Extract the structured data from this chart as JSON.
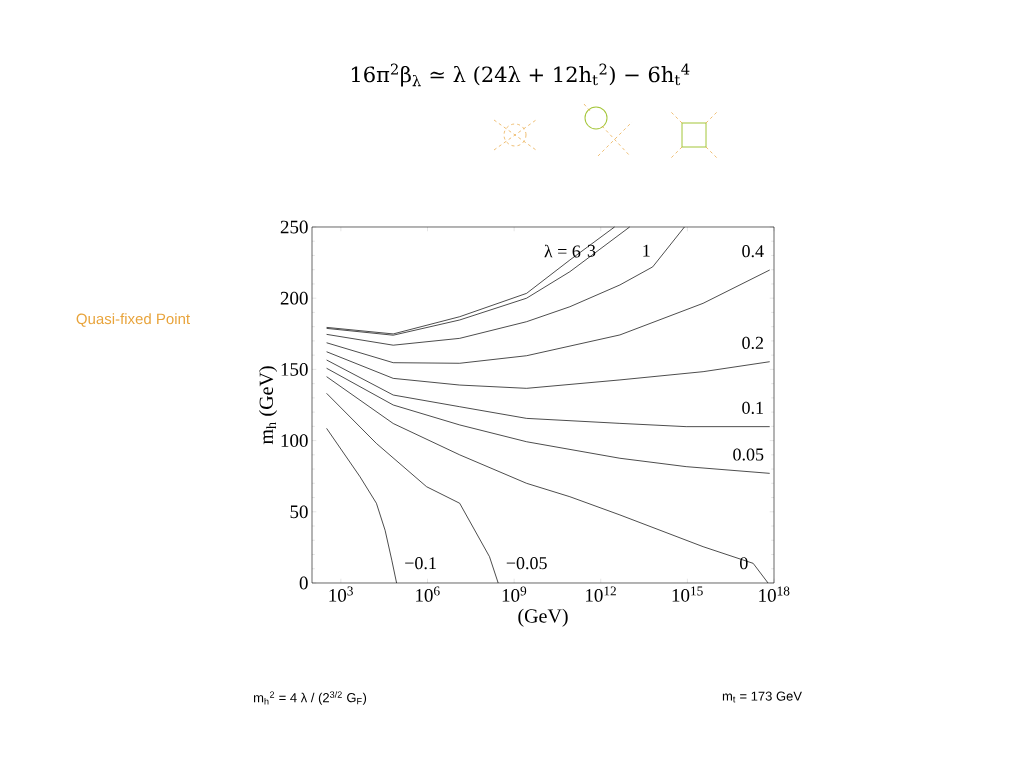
{
  "chart_data": {
    "type": "line",
    "title": "16π$^{2}$β$_{λ}$ ≃ λ (24λ + 12h$_{t}$$^{2}$) − 6h$_{t}$$^{4}$",
    "xlabel": "(GeV)",
    "ylabel": "m$_{h}$  (GeV)",
    "annotations": [
      "Quasi-fixed Point",
      "m$_{h}$$^{2}$ = 4 λ / (2$^{3/2}$ G$_{F}$)",
      "m$_{t}$ = 173 GeV"
    ],
    "log": "x",
    "xlim": [
      100,
      1e+18
    ],
    "ylim": [
      0,
      250
    ],
    "xticks": [
      {
        "value": 1000.0,
        "label": "10$^{3}$"
      },
      {
        "value": 1000000.0,
        "label": "10$^{6}$"
      },
      {
        "value": 1000000000.0,
        "label": "10$^{9}$"
      },
      {
        "value": 1000000000000.0,
        "label": "10$^{12}$"
      },
      {
        "value": 1000000000000000.0,
        "label": "10$^{15}$"
      },
      {
        "value": 1e+18,
        "label": "10$^{18}$"
      }
    ],
    "yticks": [
      0,
      50,
      100,
      150,
      200,
      250
    ],
    "series": [
      {
        "name": "λ = 6",
        "color": "#000000",
        "x": [
          320,
          65000.0,
          13000000.0,
          2700000000.0,
          85000000000.0,
          3000000000000.0
        ],
        "values": [
          179.5,
          174.9,
          187,
          203.4,
          226.8,
          250
        ]
      },
      {
        "name": "3",
        "color": "#000000",
        "x": [
          320,
          65000.0,
          13000000.0,
          2700000000.0,
          85000000000.0,
          10000000000000.0
        ],
        "values": [
          178.8,
          174,
          184.7,
          200,
          218.6,
          250
        ]
      },
      {
        "name": "1",
        "color": "#000000",
        "x": [
          320,
          65000.0,
          13000000.0,
          2700000000.0,
          85000000000.0,
          4600000000000.0,
          63000000000000.0,
          790000000000000.0
        ],
        "values": [
          174.6,
          167,
          171.8,
          183.5,
          194,
          209.3,
          222,
          250
        ]
      },
      {
        "name": "0.4",
        "color": "#000000",
        "x": [
          320,
          65000.0,
          13000000.0,
          2700000000.0,
          4600000000000.0,
          3500000000000000.0,
          7.1e+17
        ],
        "values": [
          168.7,
          154.7,
          154.3,
          159.6,
          174.2,
          196.4,
          219.8
        ]
      },
      {
        "name": "0.2",
        "color": "#000000",
        "x": [
          320,
          65000.0,
          13000000.0,
          2700000000.0,
          4600000000000.0,
          3500000000000000.0,
          7.1e+17
        ],
        "values": [
          162.4,
          143.7,
          139,
          136.7,
          142.6,
          148.4,
          155.4
        ]
      },
      {
        "name": "0.1",
        "color": "#000000",
        "x": [
          320,
          65000.0,
          13000000.0,
          2700000000.0,
          4600000000000.0,
          910000000000000.0,
          7.1e+17
        ],
        "values": [
          156.6,
          132,
          123.8,
          115.6,
          112.1,
          109.8,
          109.8
        ]
      },
      {
        "name": "0.05",
        "color": "#000000",
        "x": [
          320,
          65000.0,
          13000000.0,
          2700000000.0,
          4600000000000.0,
          910000000000000.0,
          7.1e+17
        ],
        "values": [
          150.8,
          125,
          111,
          99.2,
          87.6,
          81.7,
          77
        ]
      },
      {
        "name": "0",
        "color": "#000000",
        "x": [
          320,
          65000.0,
          13000000.0,
          2700000000.0,
          85000000000.0,
          4600000000000.0,
          3500000000000000.0,
          1.9e+17,
          6.2e+17
        ],
        "values": [
          144.9,
          112,
          90,
          70,
          60.6,
          47.8,
          25.5,
          13.8,
          0
        ]
      },
      {
        "name": "−0.05",
        "color": "#000000",
        "x": [
          320,
          17000.0,
          930000.0,
          13000000.0,
          140000000.0,
          280000000.0
        ],
        "values": [
          133.2,
          98,
          67.6,
          56,
          18.5,
          0
        ]
      },
      {
        "name": "−0.1",
        "color": "#000000",
        "x": [
          320,
          4600.0,
          17000.0,
          34000.0,
          58000.0,
          85000.0
        ],
        "values": [
          108.6,
          74.6,
          56,
          37,
          16,
          0
        ]
      }
    ]
  }
}
